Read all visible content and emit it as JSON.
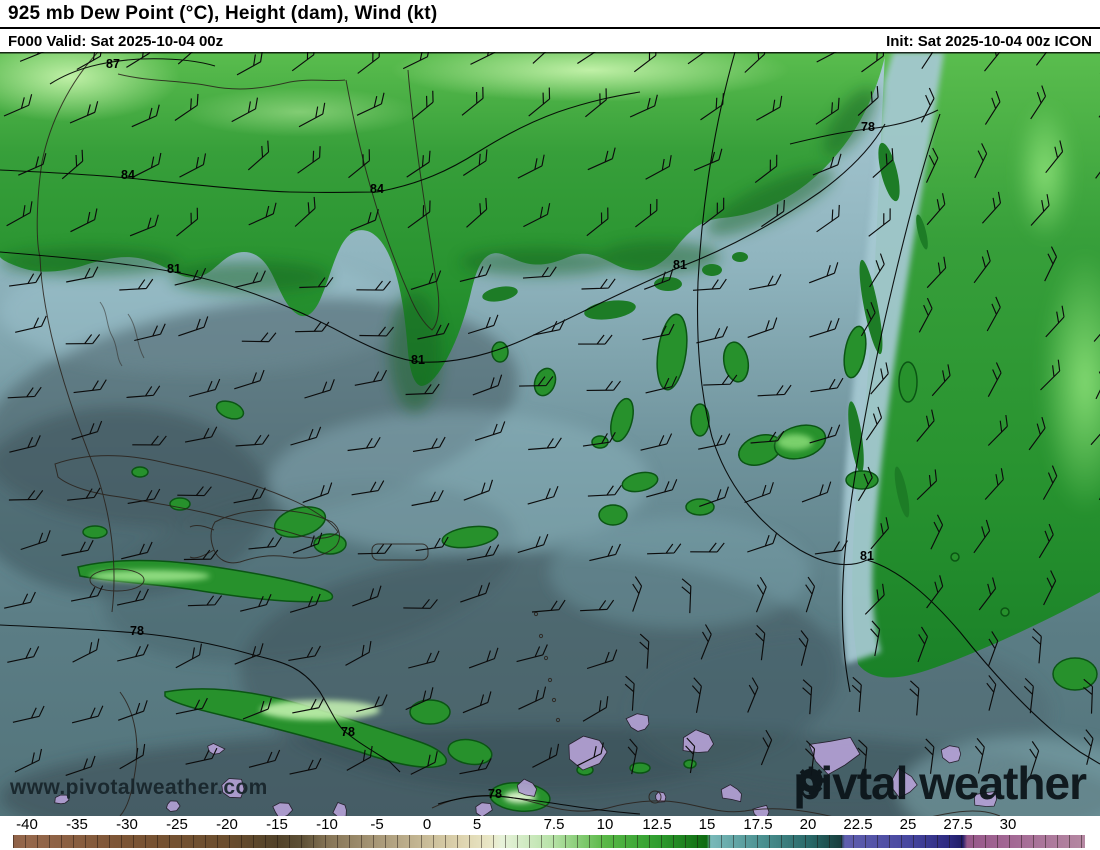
{
  "header": {
    "title": "925 mb Dew Point (°C), Height (dam), Wind (kt)",
    "run_info_left": "F000 Valid: Sat 2025-10-04 00z",
    "run_info_right": "Init: Sat 2025-10-04 00z ICON"
  },
  "map": {
    "watermark": "www.pivotalweather.com",
    "logo": {
      "part1": "piv",
      "part2": "tal weather"
    },
    "contour_labels": [
      {
        "value": "87"
      },
      {
        "value": "84"
      },
      {
        "value": "84"
      },
      {
        "value": "81"
      },
      {
        "value": "81"
      },
      {
        "value": "81"
      },
      {
        "value": "78"
      },
      {
        "value": "81"
      },
      {
        "value": "78"
      },
      {
        "value": "78"
      },
      {
        "value": "78"
      }
    ],
    "palette": {
      "land_green": "#2f9e33",
      "land_green_bright": "#7ed76a",
      "ocean_light": "#a9cad4",
      "ocean_mid": "#6d8f97",
      "ocean_dark": "#3f565e",
      "moist_purple": "#b3a0d4",
      "contour_black": "#000000"
    }
  },
  "colorbar": {
    "ticks": [
      "-40",
      "-35",
      "-30",
      "-25",
      "-20",
      "-15",
      "-10",
      "-5",
      "0",
      "5",
      "7.5",
      "10",
      "12.5",
      "15",
      "17.5",
      "20",
      "22.5",
      "25",
      "27.5",
      "30"
    ],
    "palette": {
      "brown_dark": "#4f4229",
      "brown": "#7b5434",
      "tan": "#c9bc98",
      "pale_green": "#e3f0d8",
      "green": "#2f9e2f",
      "green_dark": "#0f6b12",
      "teal": "#4e9494",
      "teal_dark": "#1d4a48",
      "indigo": "#4747a0",
      "mauve": "#a26794"
    }
  }
}
